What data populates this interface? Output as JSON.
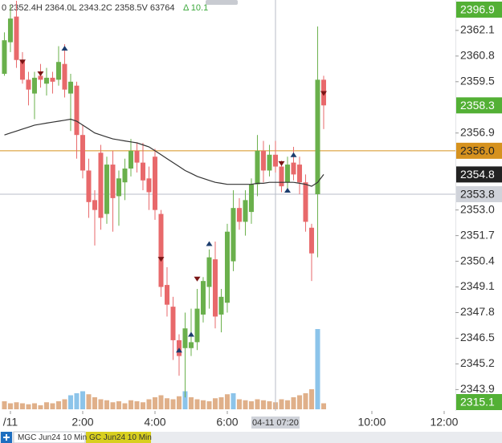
{
  "chart_data": {
    "type": "candlestick",
    "ohlc_text": "0 2352.4H 2364.0L 2343.2C 2358.5V 63764",
    "change_text": "Δ 10.1",
    "candles": {
      "x": [
        -10,
        0,
        10,
        20,
        30,
        40,
        50,
        60,
        70,
        80,
        90,
        100,
        110,
        120,
        130,
        140,
        150,
        160,
        170,
        180,
        190,
        200,
        210,
        220,
        230,
        240,
        250,
        260,
        270,
        280,
        290,
        300,
        310,
        320,
        330,
        340,
        350,
        360,
        370,
        380,
        390,
        400,
        410,
        420,
        430,
        440,
        450,
        460,
        470,
        480,
        490,
        500,
        510,
        520
      ],
      "open": [
        2359.9,
        2361.5,
        2362.8,
        2360.6,
        2359.6,
        2358.9,
        2359.8,
        2359.4,
        2359.7,
        2359.6,
        2360.4,
        2358.9,
        2359.3,
        2356.8,
        2355.0,
        2353.5,
        2355.9,
        2352.8,
        2355.3,
        2353.7,
        2354.4,
        2355.1,
        2356.0,
        2355.4,
        2354.6,
        2355.7,
        2352.8,
        2349.2,
        2348.1,
        2346.4,
        2346.0,
        2346.0,
        2346.3,
        2347.7,
        2349.1,
        2350.5,
        2347.7,
        2348.3,
        2350.4,
        2353.1,
        2352.4,
        2352.9,
        2354.3,
        2356.0,
        2355.0,
        2355.8,
        2355.2,
        2354.4,
        2355.4,
        2355.3,
        2354.4,
        2352.1,
        2353.8,
        2359.6
      ],
      "high": [
        2362.0,
        2363.4,
        2363.6,
        2361.0,
        2360.0,
        2360.0,
        2360.4,
        2360.2,
        2360.0,
        2361.3,
        2361.4,
        2359.9,
        2359.5,
        2357.3,
        2355.6,
        2354.0,
        2356.3,
        2355.7,
        2356.0,
        2355.0,
        2355.6,
        2356.6,
        2356.4,
        2356.4,
        2355.2,
        2356.1,
        2353.0,
        2350.1,
        2348.6,
        2346.7,
        2347.8,
        2348.0,
        2349.0,
        2349.6,
        2351.0,
        2351.4,
        2349.0,
        2352.3,
        2354.0,
        2353.6,
        2354.0,
        2354.6,
        2356.8,
        2356.5,
        2356.3,
        2356.5,
        2355.5,
        2355.7,
        2356.2,
        2355.7,
        2354.8,
        2352.3,
        2362.3,
        2359.8
      ],
      "low": [
        2359.8,
        2361.0,
        2360.2,
        2359.4,
        2358.3,
        2357.6,
        2359.2,
        2358.8,
        2358.9,
        2359.3,
        2358.7,
        2357.0,
        2355.6,
        2354.6,
        2352.6,
        2351.2,
        2352.0,
        2352.3,
        2351.9,
        2352.2,
        2353.5,
        2354.7,
        2354.9,
        2354.0,
        2353.0,
        2352.5,
        2348.6,
        2347.6,
        2345.4,
        2344.6,
        2343.5,
        2345.6,
        2345.9,
        2347.3,
        2348.0,
        2347.0,
        2346.8,
        2347.8,
        2349.9,
        2352.0,
        2351.7,
        2352.3,
        2353.7,
        2354.4,
        2354.7,
        2354.9,
        2353.9,
        2354.0,
        2354.5,
        2353.8,
        2351.9,
        2349.4,
        2350.6,
        2357.1
      ],
      "close": [
        2361.6,
        2362.7,
        2360.6,
        2359.6,
        2359.1,
        2359.7,
        2359.6,
        2359.7,
        2359.5,
        2360.5,
        2359.1,
        2359.5,
        2356.8,
        2355.0,
        2353.4,
        2353.0,
        2352.6,
        2355.3,
        2353.6,
        2354.6,
        2355.1,
        2356.0,
        2355.4,
        2354.5,
        2353.9,
        2353.0,
        2349.1,
        2348.2,
        2346.4,
        2345.6,
        2347.0,
        2346.3,
        2348.0,
        2349.4,
        2350.6,
        2347.6,
        2348.6,
        2351.9,
        2353.1,
        2352.4,
        2353.5,
        2354.3,
        2356.0,
        2355.0,
        2355.8,
        2355.2,
        2354.2,
        2355.3,
        2354.8,
        2354.4,
        2352.4,
        2350.8,
        2359.6,
        2358.3
      ]
    },
    "up_color": "#6ab04c",
    "down_color": "#e8696b",
    "ma": {
      "color": "#333333",
      "values": [
        2356.8,
        2356.9,
        2357.0,
        2357.1,
        2357.2,
        2357.3,
        2357.35,
        2357.4,
        2357.45,
        2357.5,
        2357.55,
        2357.6,
        2357.5,
        2357.3,
        2357.1,
        2356.9,
        2356.8,
        2356.7,
        2356.6,
        2356.55,
        2356.5,
        2356.45,
        2356.4,
        2356.3,
        2356.2,
        2356.0,
        2355.8,
        2355.6,
        2355.4,
        2355.2,
        2355.0,
        2354.85,
        2354.7,
        2354.6,
        2354.5,
        2354.4,
        2354.35,
        2354.3,
        2354.3,
        2354.3,
        2354.3,
        2354.3,
        2354.35,
        2354.35,
        2354.4,
        2354.4,
        2354.4,
        2354.4,
        2354.4,
        2354.35,
        2354.3,
        2354.2,
        2354.4,
        2354.8
      ]
    },
    "volume": {
      "values": [
        400,
        300,
        350,
        300,
        250,
        300,
        200,
        350,
        300,
        400,
        500,
        700,
        800,
        900,
        750,
        600,
        500,
        450,
        350,
        400,
        300,
        450,
        400,
        350,
        500,
        600,
        700,
        550,
        500,
        650,
        900,
        600,
        500,
        450,
        400,
        550,
        600,
        750,
        800,
        500,
        450,
        400,
        500,
        450,
        400,
        350,
        500,
        450,
        600,
        700,
        800,
        1000,
        4000,
        300
      ],
      "colors": [
        "#e0b08a",
        "#e0b08a",
        "#e0b08a",
        "#e0b08a",
        "#e0b08a",
        "#e0b08a",
        "#e0b08a",
        "#e0b08a",
        "#e0b08a",
        "#e0b08a",
        "#e0b08a",
        "#8cc4ea",
        "#8cc4ea",
        "#8cc4ea",
        "#e0b08a",
        "#e0b08a",
        "#e0b08a",
        "#e0b08a",
        "#e0b08a",
        "#e0b08a",
        "#e0b08a",
        "#e0b08a",
        "#e0b08a",
        "#e0b08a",
        "#e0b08a",
        "#e0b08a",
        "#e0b08a",
        "#e0b08a",
        "#e0b08a",
        "#e0b08a",
        "#8cc4ea",
        "#e0b08a",
        "#e0b08a",
        "#e0b08a",
        "#e0b08a",
        "#e0b08a",
        "#e0b08a",
        "#e0b08a",
        "#8cc4ea",
        "#e0b08a",
        "#e0b08a",
        "#e0b08a",
        "#e0b08a",
        "#e0b08a",
        "#e0b08a",
        "#e0b08a",
        "#e0b08a",
        "#e0b08a",
        "#e0b08a",
        "#e0b08a",
        "#e0b08a",
        "#e0b08a",
        "#8cc4ea",
        "#e0b08a"
      ],
      "ylim": [
        0,
        5000
      ]
    },
    "markers": {
      "down": {
        "color": "#7a1515",
        "x": [
          20,
          50,
          250,
          310,
          450,
          520
        ],
        "y": [
          2360.5,
          2359.9,
          2350.5,
          2349.5,
          2355.35,
          2358.9
        ]
      },
      "up": {
        "color": "#1c3d6e",
        "x": [
          90,
          280,
          300,
          330,
          460,
          470
        ],
        "y": [
          2361.2,
          2345.9,
          2346.7,
          2351.3,
          2354.0,
          2355.8
        ]
      }
    },
    "xlim": [
      -17.3,
      738.7
    ],
    "ylim": [
      2342.9,
      2363.64
    ],
    "xticks": [
      {
        "value": 0,
        "label": "/11"
      },
      {
        "value": 120,
        "label": "2:00"
      },
      {
        "value": 240,
        "label": "4:00"
      },
      {
        "value": 360,
        "label": "6:00"
      },
      {
        "value": 600,
        "label": "10:00"
      },
      {
        "value": 720,
        "label": "12:00"
      }
    ],
    "yticks": [
      2362.1,
      2360.8,
      2359.5,
      2356.9,
      {
        "value": 2353,
        "label": "2353.0"
      },
      2351.7,
      2350.4,
      2349.1,
      2347.8,
      2346.5,
      2345.2,
      2343.9
    ],
    "levels": [
      {
        "price": 2358.3,
        "color": "#53b035",
        "text_color": "#ffffff",
        "line": false
      },
      {
        "price": {
          "value": 2356,
          "label": "2356.0"
        },
        "color": "#d6921e",
        "text_color": "#222222",
        "line": true
      },
      {
        "price": 2354.8,
        "color": "#222222",
        "text_color": "#ffffff",
        "line": false
      },
      {
        "price": 2353.8,
        "color": "#d0d3da",
        "text_color": "#222222",
        "line": true
      }
    ],
    "crosshair": {
      "x": 440,
      "label": "04-11 07:20"
    },
    "scale_max_label": "2396.9",
    "volume_label": "2315.1",
    "tabs": [
      "MGC Jun24 10 Min",
      "GC Jun24 10 Min"
    ]
  }
}
